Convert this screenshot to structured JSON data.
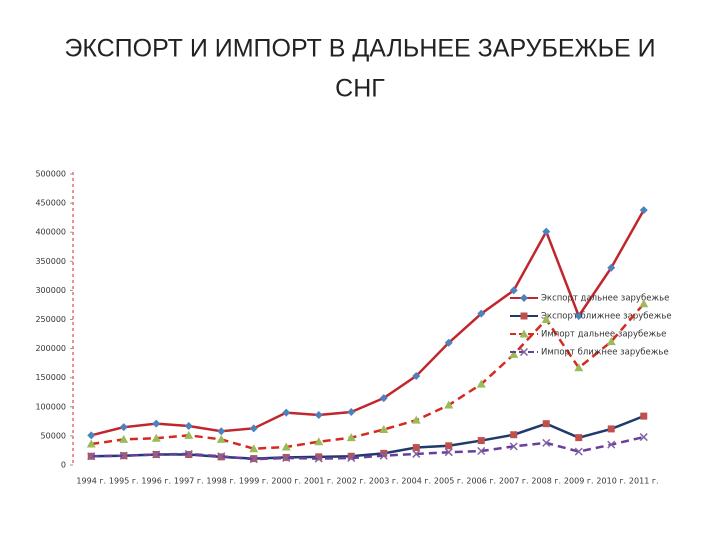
{
  "chart_data": {
    "type": "line",
    "title_lines": [
      "ЭКСПОРТ И ИМПОРТ В ДАЛЬНЕЕ ЗАРУБЕЖЬЕ И",
      "СНГ"
    ],
    "categories": [
      "1994 г.",
      "1995 г.",
      "1996 г.",
      "1997 г.",
      "1998 г.",
      "1999 г.",
      "2000 г.",
      "2001 г.",
      "2002 г.",
      "2003 г.",
      "2004 г.",
      "2005 г.",
      "2006 г.",
      "2007 г.",
      "2008 г.",
      "2009 г.",
      "2010 г.",
      "2011 г."
    ],
    "series": [
      {
        "name": "Экспорт дальнее зарубежье",
        "color": "#c0272d",
        "marker_color": "#4f81bd",
        "marker": "diamond",
        "dashed": false,
        "values": [
          51000,
          65000,
          71000,
          67000,
          58000,
          63000,
          90000,
          86000,
          91000,
          115000,
          153000,
          210000,
          260000,
          300000,
          401000,
          256000,
          339000,
          438000
        ]
      },
      {
        "name": "Экспорт ближнее зарубежье",
        "color": "#1f3a6e",
        "marker_color": "#c0504d",
        "marker": "square",
        "dashed": false,
        "values": [
          15000,
          16000,
          18000,
          18000,
          14000,
          11000,
          13000,
          14000,
          15000,
          20000,
          30000,
          33000,
          42000,
          52000,
          71000,
          47000,
          62000,
          84000
        ]
      },
      {
        "name": "Импорт дальнее зарубежье",
        "color": "#d42a20",
        "marker_color": "#9bbb59",
        "marker": "triangle",
        "dashed": true,
        "values": [
          36000,
          44000,
          46000,
          51000,
          44000,
          28000,
          31000,
          40000,
          47000,
          61000,
          77000,
          103000,
          139000,
          190000,
          250000,
          167000,
          212000,
          277000
        ]
      },
      {
        "name": "Импорт ближнее зарубежье",
        "color": "#6a3f9c",
        "marker_color": "#8064a2",
        "marker": "x",
        "dashed": true,
        "values": [
          15000,
          16000,
          18000,
          19000,
          15000,
          10000,
          12000,
          11000,
          12000,
          16000,
          19000,
          22000,
          24000,
          32000,
          38000,
          23000,
          35000,
          48000
        ]
      }
    ],
    "ylim": [
      0,
      500000
    ],
    "yticks": [
      0,
      50000,
      100000,
      150000,
      200000,
      250000,
      300000,
      350000,
      400000,
      450000,
      500000
    ],
    "grid": false
  }
}
